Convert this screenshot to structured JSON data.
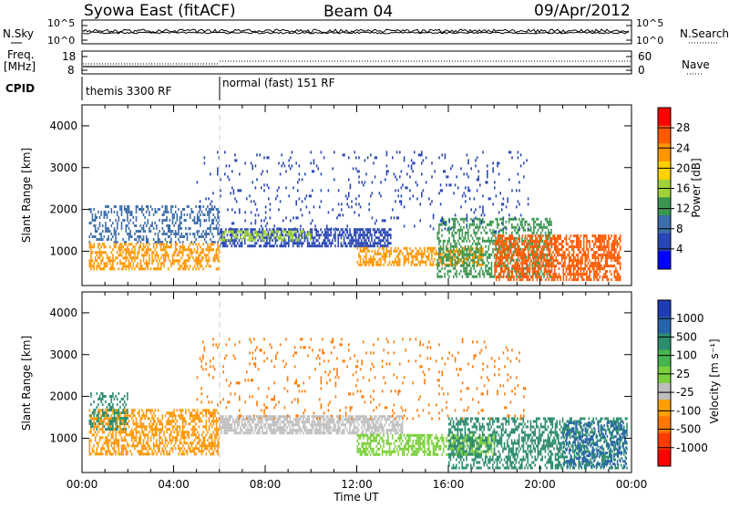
{
  "header": {
    "title": "Syowa East (fitACF)",
    "beam": "Beam 04",
    "date": "09/Apr/2012"
  },
  "top_panels": {
    "nsky_label": "N.Sky",
    "nsearch_label": "N.Search",
    "noise_ticks_left": [
      "10^5",
      "10^0"
    ],
    "noise_ticks_right": [
      "10^5",
      "10^0"
    ],
    "freq_label_line1": "Freq.",
    "freq_label_line2": "[MHz]",
    "freq_ticks": [
      "18",
      "8"
    ],
    "nave_label": "Nave",
    "nave_ticks": [
      "60",
      "0"
    ],
    "cpid_label": "CPID",
    "cpid_modes": [
      {
        "label": "themis 3300 RF",
        "start_hour": 0
      },
      {
        "label": "normal (fast) 151 RF",
        "start_hour": 6
      }
    ]
  },
  "colorbars": {
    "power": {
      "label": "Power [dB]",
      "ticks": [
        "28",
        "24",
        "20",
        "16",
        "12",
        "8",
        "4"
      ],
      "colors": [
        "#ff0000",
        "#ff5a00",
        "#ff9600",
        "#ffd200",
        "#a0d23c",
        "#3c9650",
        "#3c6eaa",
        "#2846b4",
        "#0000ff"
      ]
    },
    "velocity": {
      "label": "Velocity [m s⁻¹]",
      "ticks": [
        "1000",
        "500",
        "100",
        "25",
        "-25",
        "-100",
        "-500",
        "-1000"
      ],
      "colors": [
        "#1e3cb4",
        "#2864aa",
        "#2d8c6e",
        "#46b450",
        "#7ccf3c",
        "#bebebe",
        "#ffa000",
        "#ff7800",
        "#ff3c00",
        "#ff0000"
      ]
    }
  },
  "chart_data": [
    {
      "type": "heatmap",
      "name_panel": "power",
      "xlabel": "",
      "ylabel": "Slant Range [km]",
      "xlim": [
        0,
        24
      ],
      "ylim": [
        180,
        4500
      ],
      "y_ticks": [
        "4000",
        "3000",
        "2000",
        "1000"
      ],
      "y_tick_values": [
        4000,
        3000,
        2000,
        1000
      ],
      "regions": [
        {
          "t0": 0.3,
          "t1": 6.0,
          "r0": 1200,
          "r1": 2100,
          "color": "#3c6eaa",
          "density": 0.35
        },
        {
          "t0": 0.3,
          "t1": 6.0,
          "r0": 600,
          "r1": 1200,
          "color": "#ff9600",
          "density": 0.5
        },
        {
          "t0": 6.0,
          "t1": 13.5,
          "r0": 1100,
          "r1": 1550,
          "color": "#2846b4",
          "density": 0.65
        },
        {
          "t0": 6.0,
          "t1": 10.0,
          "r0": 1250,
          "r1": 1500,
          "color": "#a0d23c",
          "density": 0.4
        },
        {
          "t0": 12.0,
          "t1": 17.5,
          "r0": 650,
          "r1": 1100,
          "color": "#ff9600",
          "density": 0.55
        },
        {
          "t0": 15.5,
          "t1": 20.5,
          "r0": 400,
          "r1": 1800,
          "color": "#3c9650",
          "density": 0.45
        },
        {
          "t0": 18.0,
          "t1": 23.5,
          "r0": 300,
          "r1": 1400,
          "color": "#ff5a00",
          "density": 0.6
        },
        {
          "t0": 5.0,
          "t1": 19.5,
          "r0": 1500,
          "r1": 3400,
          "color": "#2846b4",
          "density": 0.06
        }
      ]
    },
    {
      "type": "heatmap",
      "name_panel": "velocity",
      "xlabel": "Time UT",
      "ylabel": "Slant Range [km]",
      "xlim": [
        0,
        24
      ],
      "ylim": [
        180,
        4500
      ],
      "x_ticks": [
        "00:00",
        "04:00",
        "08:00",
        "12:00",
        "16:00",
        "20:00",
        "00:00"
      ],
      "x_tick_values": [
        0,
        4,
        8,
        12,
        16,
        20,
        24
      ],
      "y_ticks": [
        "4000",
        "3000",
        "2000",
        "1000"
      ],
      "y_tick_values": [
        4000,
        3000,
        2000,
        1000
      ],
      "regions": [
        {
          "t0": 0.3,
          "t1": 6.0,
          "r0": 600,
          "r1": 1700,
          "color": "#ff9600",
          "density": 0.5
        },
        {
          "t0": 0.3,
          "t1": 2.0,
          "r0": 1200,
          "r1": 2100,
          "color": "#2d8c6e",
          "density": 0.35
        },
        {
          "t0": 6.0,
          "t1": 14.0,
          "r0": 1100,
          "r1": 1550,
          "color": "#bebebe",
          "density": 0.7
        },
        {
          "t0": 12.0,
          "t1": 18.0,
          "r0": 600,
          "r1": 1100,
          "color": "#7ccf3c",
          "density": 0.55
        },
        {
          "t0": 16.0,
          "t1": 23.8,
          "r0": 300,
          "r1": 1500,
          "color": "#2d8c6e",
          "density": 0.5
        },
        {
          "t0": 21.0,
          "t1": 23.8,
          "r0": 300,
          "r1": 1400,
          "color": "#2864aa",
          "density": 0.35
        },
        {
          "t0": 5.0,
          "t1": 19.5,
          "r0": 1500,
          "r1": 3400,
          "color": "#ff7800",
          "density": 0.06
        }
      ]
    }
  ]
}
